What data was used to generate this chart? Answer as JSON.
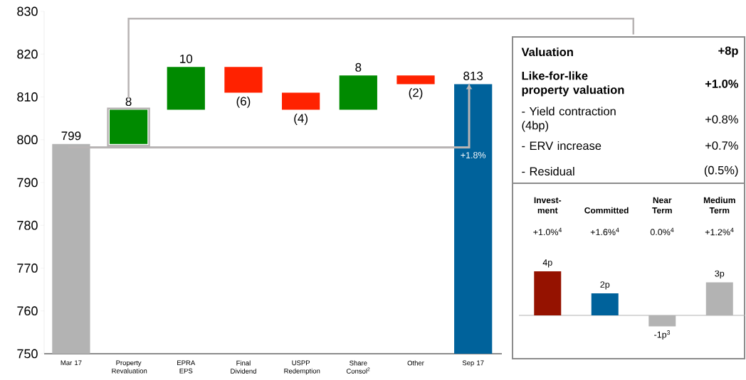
{
  "chart_data": [
    {
      "type": "bar",
      "categories": [
        "Mar 17",
        "Property Revaluation",
        "EPRA EPS",
        "Final Dividend",
        "USPP Redemption",
        "Share Consol$^{2}$",
        "Other",
        "Sep 17"
      ],
      "base": [
        750,
        799,
        807,
        817,
        811,
        807,
        815,
        750
      ],
      "values": [
        49,
        8,
        10,
        -6,
        -4,
        8,
        -2,
        63
      ],
      "colors": [
        "#b3b3b3",
        "#008a00",
        "#008a00",
        "#ff2200",
        "#ff2200",
        "#008a00",
        "#ff2200",
        "#00629b"
      ],
      "value_labels": [
        "799",
        "8",
        "10",
        "(6)",
        "(4)",
        "8",
        "(2)",
        "813"
      ],
      "ylim": [
        750,
        830
      ],
      "yticks": [
        750,
        760,
        770,
        780,
        790,
        800,
        810,
        820,
        830
      ],
      "annotations": [
        "+1.8%"
      ]
    },
    {
      "type": "other",
      "annotations": [
        "Valuation",
        "+8p",
        "Like-for-like property valuation",
        "+1.0%",
        "- Yield contraction (4bp)",
        "+0.8%",
        "- ERV increase",
        "+0.7%",
        "- Residual",
        "(0.5%)"
      ]
    },
    {
      "type": "bar",
      "categories": [
        "Invest-ment",
        "Committed",
        "Near Term",
        "Medium Term"
      ],
      "values": [
        4,
        2,
        -1,
        3
      ],
      "colors": [
        "#951200",
        "#00629b",
        "#b3b3b3",
        "#b3b3b3"
      ],
      "value_labels": [
        "4p",
        "2p",
        "-1p$^{3}$",
        "3p"
      ],
      "annotations": [
        "+1.0%$^{4}$",
        "+1.6%$^{4}$",
        "0.0%$^{4}$",
        "+1.2%$^{4}$"
      ]
    }
  ]
}
